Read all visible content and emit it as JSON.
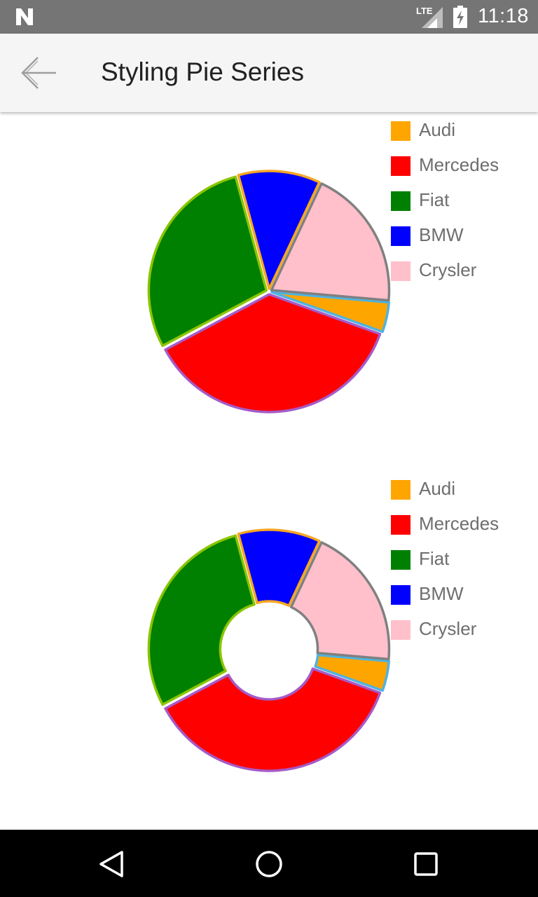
{
  "status_bar": {
    "network": "LTE",
    "time": "11:18"
  },
  "app_bar": {
    "title": "Styling Pie Series",
    "back_icon": "arrow-back-icon"
  },
  "chart_data": [
    {
      "type": "pie",
      "title": "",
      "legend_position": "top-right",
      "categories": [
        "Audi",
        "Mercedes",
        "Fiat",
        "BMW",
        "Crysler"
      ],
      "values": [
        4,
        36,
        28,
        11,
        19
      ],
      "fill_colors": [
        "#FFA500",
        "#FF0000",
        "#008000",
        "#0000FF",
        "#FFC0CB"
      ],
      "stroke_colors": [
        "#4FB3E0",
        "#A55BC8",
        "#8BC400",
        "#F5A623",
        "#808080"
      ]
    },
    {
      "type": "pie",
      "variant": "donut",
      "title": "",
      "legend_position": "top-right",
      "categories": [
        "Audi",
        "Mercedes",
        "Fiat",
        "BMW",
        "Crysler"
      ],
      "values": [
        4,
        36,
        28,
        11,
        19
      ],
      "fill_colors": [
        "#FFA500",
        "#FF0000",
        "#008000",
        "#0000FF",
        "#FFC0CB"
      ],
      "stroke_colors": [
        "#4FB3E0",
        "#A55BC8",
        "#8BC400",
        "#F5A623",
        "#808080"
      ]
    }
  ],
  "nav_bar": {
    "back_icon": "triangle-back-icon",
    "home_icon": "circle-home-icon",
    "recents_icon": "square-recents-icon"
  }
}
